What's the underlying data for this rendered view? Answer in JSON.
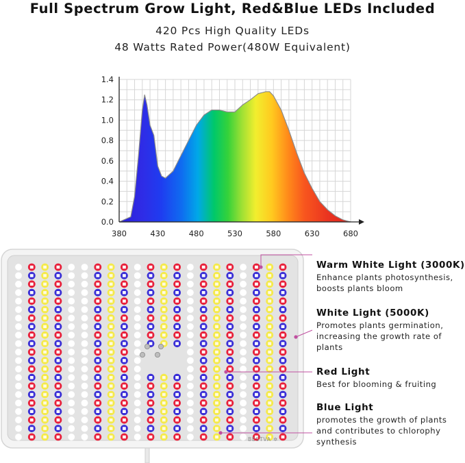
{
  "header": {
    "title": "Full Spectrum Grow Light, Red&Blue LEDs Included",
    "line1": "420 Pcs High Quality LEDs",
    "line2": "48 Watts Rated Power(480W Equivalent)"
  },
  "chart_data": {
    "type": "area",
    "title": "",
    "xlabel": "",
    "ylabel": "",
    "x_ticks": [
      380,
      430,
      480,
      530,
      580,
      630,
      680
    ],
    "y_ticks": [
      0.0,
      0.2,
      0.4,
      0.6,
      0.8,
      1.0,
      1.2,
      1.4
    ],
    "xlim": [
      380,
      680
    ],
    "ylim": [
      0,
      1.4
    ],
    "grid": true,
    "fill": "rainbow-spectrum",
    "x": [
      380,
      395,
      400,
      405,
      410,
      413,
      416,
      420,
      425,
      430,
      435,
      440,
      450,
      460,
      470,
      480,
      490,
      500,
      510,
      520,
      530,
      540,
      550,
      560,
      570,
      575,
      580,
      590,
      600,
      610,
      620,
      630,
      640,
      650,
      660,
      670,
      680
    ],
    "values": [
      0.0,
      0.05,
      0.25,
      0.65,
      1.1,
      1.25,
      1.15,
      0.95,
      0.85,
      0.55,
      0.45,
      0.43,
      0.5,
      0.65,
      0.8,
      0.95,
      1.05,
      1.1,
      1.1,
      1.08,
      1.08,
      1.15,
      1.2,
      1.26,
      1.28,
      1.28,
      1.24,
      1.1,
      0.9,
      0.68,
      0.48,
      0.33,
      0.2,
      0.12,
      0.06,
      0.02,
      0.0
    ]
  },
  "panel": {
    "brand": "BESTVA",
    "brand_mark": "✲"
  },
  "callouts": [
    {
      "title": "Warm White Light (3000K)",
      "desc": [
        "Enhance plants photosynthesis,",
        "boosts plants bloom"
      ]
    },
    {
      "title": "White Light (5000K)",
      "desc": [
        "Promotes plants germination,",
        "increasing the growth rate of",
        "plants"
      ]
    },
    {
      "title": "Red Light",
      "desc": [
        "Best for blooming & fruiting"
      ]
    },
    {
      "title": "Blue Light",
      "desc": [
        "promotes the growth of plants",
        "and contributes to chlorophy",
        "synthesis"
      ]
    }
  ],
  "colors": {
    "red_led": "#e8203a",
    "blue_led": "#3a2fd6",
    "yellow_led": "#f5ea4a",
    "white_led": "#ffffff",
    "callout_line": "#c04fa0"
  }
}
